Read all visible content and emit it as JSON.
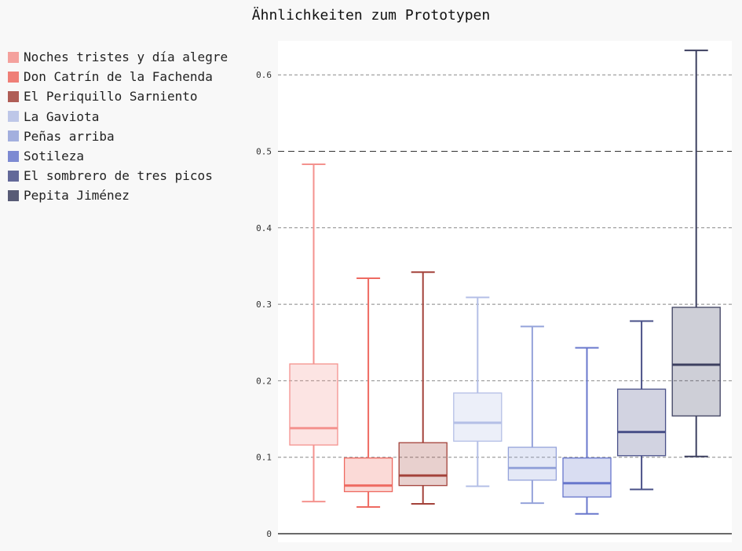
{
  "chart_data": {
    "type": "box",
    "title": "Ähnlichkeiten zum Prototypen",
    "xlabel": "",
    "ylabel": "",
    "ylim": [
      0,
      0.65
    ],
    "yticks": [
      0,
      0.1,
      0.2,
      0.3,
      0.4,
      0.5,
      0.6
    ],
    "ytick_labels": [
      "0",
      "0.1",
      "0.2",
      "0.3",
      "0.4",
      "0.5",
      "0.6"
    ],
    "grid": true,
    "legend_position": "left",
    "series": [
      {
        "name": "Noches tristes y día alegre",
        "color": "#f4928e",
        "min": 0.042,
        "q1": 0.116,
        "median": 0.138,
        "q3": 0.222,
        "max": 0.483
      },
      {
        "name": "Don Catrín de la Fachenda",
        "color": "#ee6a61",
        "min": 0.035,
        "q1": 0.055,
        "median": 0.063,
        "q3": 0.099,
        "max": 0.334
      },
      {
        "name": "El Periquillo Sarniento",
        "color": "#a3423a",
        "min": 0.039,
        "q1": 0.063,
        "median": 0.076,
        "q3": 0.119,
        "max": 0.342
      },
      {
        "name": "La Gaviota",
        "color": "#b4bfe6",
        "min": 0.062,
        "q1": 0.121,
        "median": 0.145,
        "q3": 0.184,
        "max": 0.309
      },
      {
        "name": "Peñas arriba",
        "color": "#95a3da",
        "min": 0.04,
        "q1": 0.07,
        "median": 0.086,
        "q3": 0.113,
        "max": 0.271
      },
      {
        "name": "Sotileza",
        "color": "#6877cc",
        "min": 0.026,
        "q1": 0.048,
        "median": 0.066,
        "q3": 0.099,
        "max": 0.243
      },
      {
        "name": "El sombrero de tres picos",
        "color": "#4a5189",
        "min": 0.058,
        "q1": 0.102,
        "median": 0.133,
        "q3": 0.189,
        "max": 0.278
      },
      {
        "name": "Pepita Jiménez",
        "color": "#3d4060",
        "min": 0.101,
        "q1": 0.154,
        "median": 0.221,
        "q3": 0.296,
        "max": 0.632
      }
    ]
  }
}
